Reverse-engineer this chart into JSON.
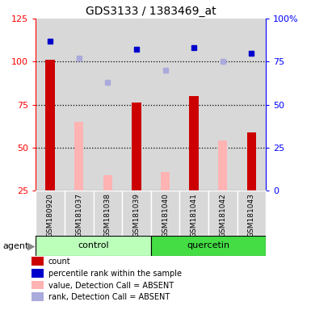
{
  "title": "GDS3133 / 1383469_at",
  "samples": [
    "GSM180920",
    "GSM181037",
    "GSM181038",
    "GSM181039",
    "GSM181040",
    "GSM181041",
    "GSM181042",
    "GSM181043"
  ],
  "groups": [
    "control",
    "control",
    "control",
    "control",
    "quercetin",
    "quercetin",
    "quercetin",
    "quercetin"
  ],
  "count_values": [
    101,
    null,
    null,
    76,
    null,
    80,
    null,
    59
  ],
  "rank_values": [
    87,
    null,
    null,
    82,
    null,
    83,
    null,
    80
  ],
  "absent_value": [
    null,
    65,
    34,
    null,
    36,
    null,
    54,
    null
  ],
  "absent_rank": [
    null,
    77,
    63,
    null,
    70,
    null,
    75,
    null
  ],
  "ylim_left": [
    25,
    125
  ],
  "ylim_right": [
    0,
    100
  ],
  "left_ticks": [
    25,
    50,
    75,
    100,
    125
  ],
  "right_ticks": [
    0,
    25,
    50,
    75,
    100
  ],
  "right_tick_labels": [
    "0",
    "25",
    "50",
    "75",
    "100%"
  ],
  "color_count": "#cc0000",
  "color_rank": "#0000cc",
  "color_absent_value": "#ffb3b3",
  "color_absent_rank": "#aaaadd",
  "group_control_color": "#bbffbb",
  "group_quercetin_color": "#44dd44",
  "legend_items": [
    {
      "label": "count",
      "color": "#cc0000"
    },
    {
      "label": "percentile rank within the sample",
      "color": "#0000cc"
    },
    {
      "label": "value, Detection Call = ABSENT",
      "color": "#ffb3b3"
    },
    {
      "label": "rank, Detection Call = ABSENT",
      "color": "#aaaadd"
    }
  ]
}
